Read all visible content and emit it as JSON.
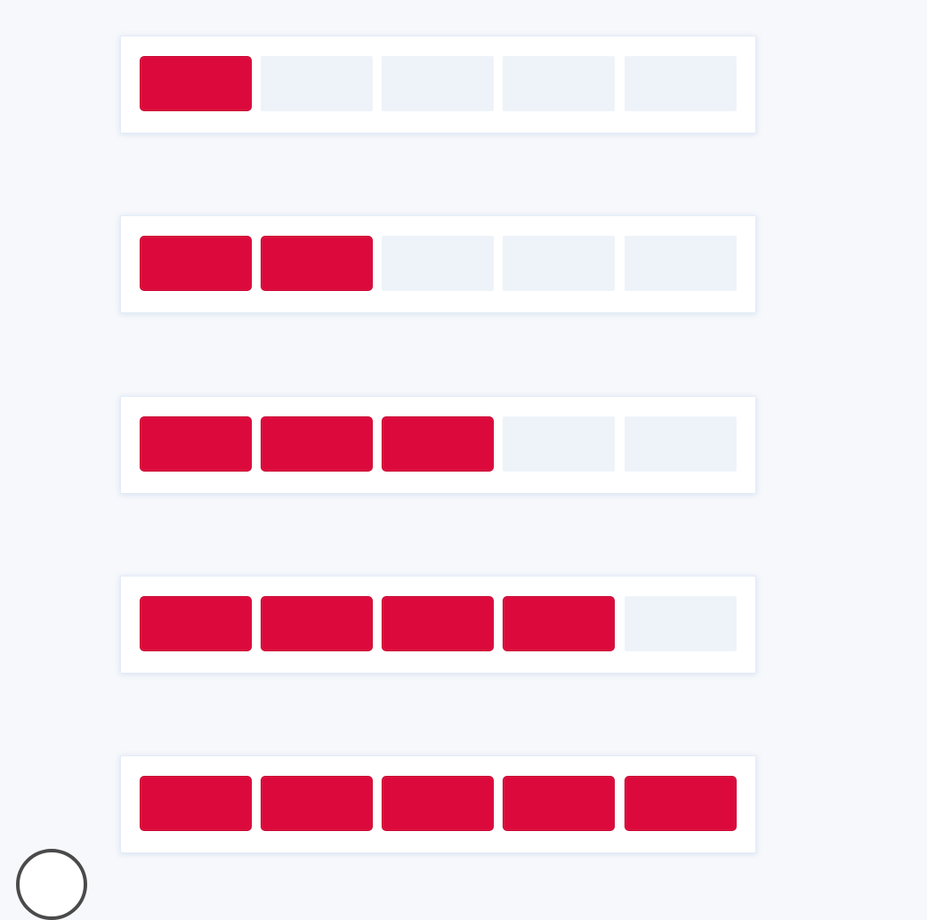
{
  "colors": {
    "background": "#f6f8fb",
    "filled": "#dc0a3c",
    "empty": "#eef3fa"
  },
  "meters": [
    {
      "level": 1,
      "max": 5
    },
    {
      "level": 2,
      "max": 5
    },
    {
      "level": 3,
      "max": 5
    },
    {
      "level": 4,
      "max": 5
    }
  ],
  "final_meter": {
    "level": 5,
    "max": 5
  },
  "corner_icon": "circle-icon"
}
